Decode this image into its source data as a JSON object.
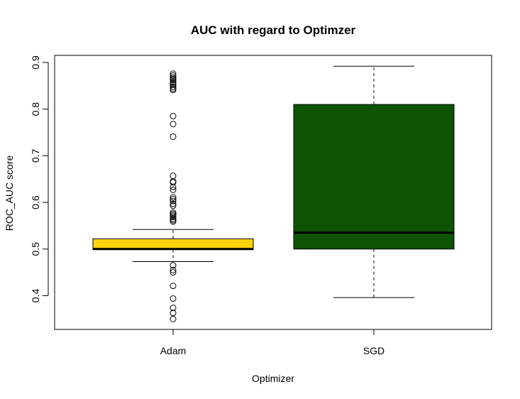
{
  "chart_data": {
    "type": "boxplot",
    "title": "AUC with regard to Optimzer",
    "xlabel": "Optimizer",
    "ylabel": "ROC_AUC score",
    "ylim": [
      0.33,
      0.905
    ],
    "yticks": [
      "0.4",
      "0.5",
      "0.6",
      "0.7",
      "0.8",
      "0.9"
    ],
    "grid": false,
    "legend": "none",
    "series": [
      {
        "category": "Adam",
        "color": "#FFD30F",
        "whisker_low": 0.473,
        "q1": 0.499,
        "median": 0.5,
        "q3": 0.522,
        "whisker_high": 0.542,
        "outliers": [
          0.876,
          0.872,
          0.868,
          0.865,
          0.862,
          0.858,
          0.855,
          0.852,
          0.848,
          0.844,
          0.841,
          0.785,
          0.768,
          0.741,
          0.657,
          0.645,
          0.643,
          0.633,
          0.627,
          0.611,
          0.607,
          0.603,
          0.597,
          0.593,
          0.578,
          0.575,
          0.572,
          0.569,
          0.565,
          0.562,
          0.559,
          0.465,
          0.455,
          0.45,
          0.421,
          0.394,
          0.374,
          0.363,
          0.35
        ]
      },
      {
        "category": "SGD",
        "color": "#0D5402",
        "whisker_low": 0.396,
        "q1": 0.5,
        "median": 0.535,
        "q3": 0.81,
        "whisker_high": 0.892,
        "outliers": []
      }
    ]
  }
}
